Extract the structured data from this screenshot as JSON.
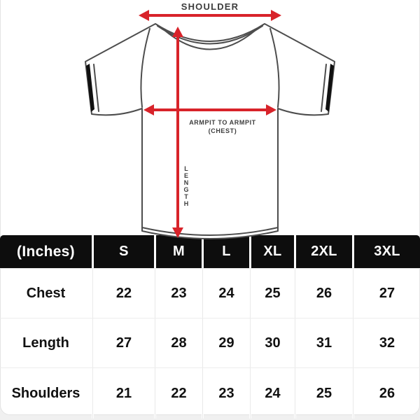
{
  "diagram": {
    "shoulder_label": "SHOULDER",
    "chest_label_line1": "ARMPIT TO ARMPIT",
    "chest_label_line2": "(CHEST)",
    "length_label": "LENGTH",
    "arrow_color": "#d8232a",
    "outline_color": "#4d4d4d"
  },
  "table": {
    "header_bg": "#0d0d0d",
    "header_text_color": "#ffffff",
    "unit_header": "(Inches)"
  },
  "chart_data": {
    "type": "table",
    "columns": [
      "(Inches)",
      "S",
      "M",
      "L",
      "XL",
      "2XL",
      "3XL"
    ],
    "rows": [
      {
        "label": "Chest",
        "values": [
          22,
          23,
          24,
          25,
          26,
          27
        ]
      },
      {
        "label": "Length",
        "values": [
          27,
          28,
          29,
          30,
          31,
          32
        ]
      },
      {
        "label": "Shoulders",
        "values": [
          21,
          22,
          23,
          24,
          25,
          26
        ]
      }
    ]
  }
}
